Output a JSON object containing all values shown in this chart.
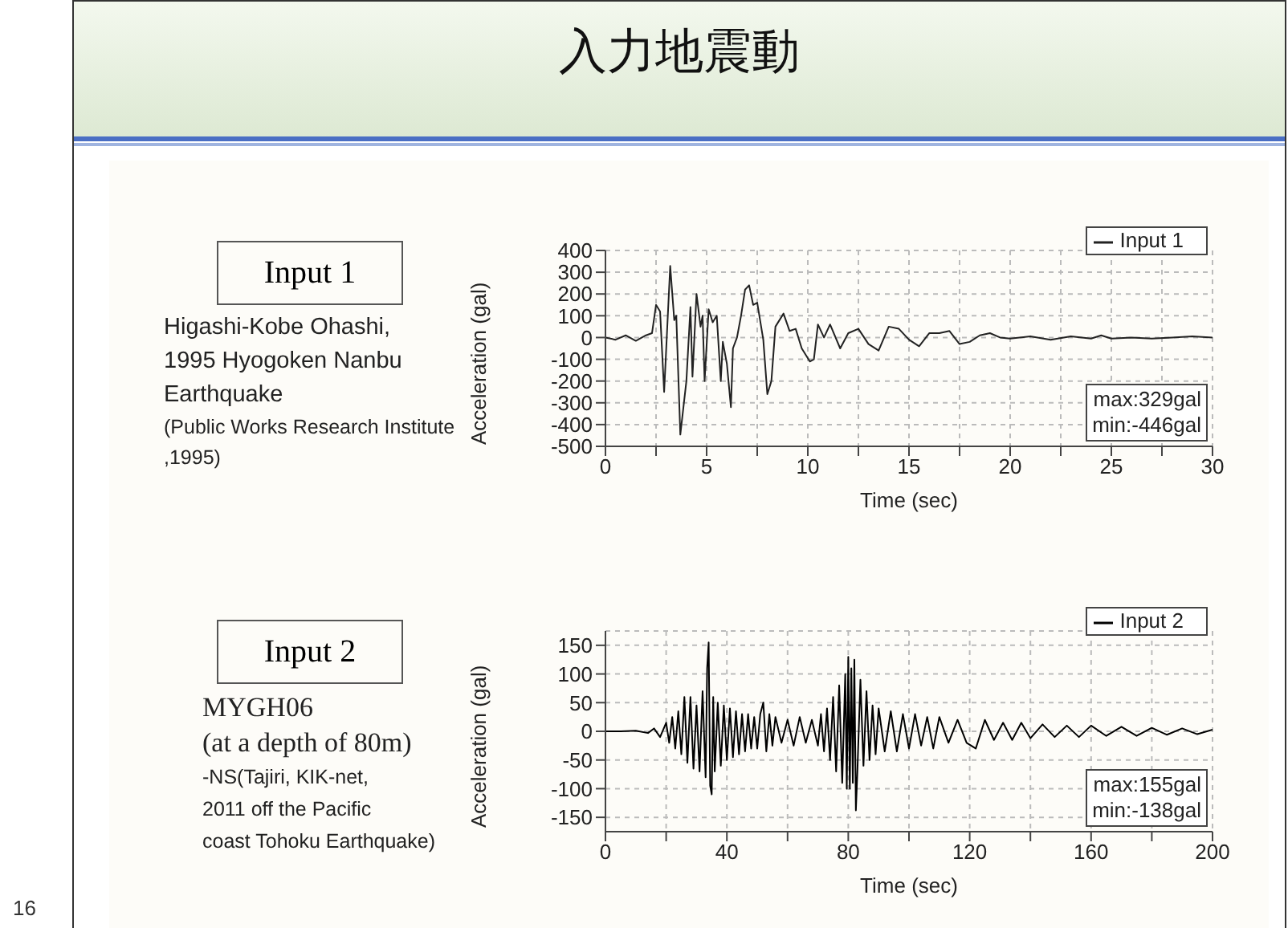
{
  "chart_data": [
    {
      "type": "line",
      "title": "入力地震動",
      "xlabel": "Time (sec)",
      "ylabel": "Acceleration (gal)",
      "x": [
        0,
        0.5,
        1,
        1.5,
        2,
        2.3,
        2.5,
        2.7,
        2.9,
        3.2,
        3.4,
        3.5,
        3.7,
        4,
        4.2,
        4.3,
        4.5,
        4.7,
        4.8,
        4.9,
        5.1,
        5.3,
        5.5,
        5.7,
        5.8,
        6,
        6.2,
        6.3,
        6.5,
        6.7,
        6.9,
        7.1,
        7.3,
        7.5,
        7.8,
        8,
        8.2,
        8.4,
        8.8,
        9.1,
        9.4,
        9.7,
        10.1,
        10.3,
        10.5,
        10.8,
        11.1,
        11.6,
        12,
        12.5,
        13,
        13.5,
        14,
        14.5,
        15,
        15.5,
        16,
        16.5,
        17,
        17.5,
        18,
        18.5,
        19,
        19.5,
        20,
        21,
        22,
        23,
        24,
        24.5,
        25,
        26,
        27,
        28,
        29,
        30
      ],
      "series": [
        {
          "name": "Input 1",
          "color": "#222222",
          "values": [
            0,
            -10,
            10,
            -15,
            10,
            20,
            150,
            120,
            -250,
            329,
            80,
            100,
            -446,
            -200,
            140,
            -180,
            200,
            50,
            100,
            -200,
            130,
            70,
            100,
            -200,
            -20,
            -120,
            -320,
            -50,
            0,
            100,
            220,
            240,
            150,
            160,
            -10,
            -260,
            -200,
            50,
            110,
            30,
            40,
            -50,
            -110,
            -100,
            60,
            0,
            60,
            -50,
            20,
            40,
            -30,
            -60,
            50,
            40,
            -10,
            -40,
            20,
            20,
            30,
            -30,
            -20,
            10,
            20,
            0,
            -5,
            5,
            -10,
            5,
            -5,
            10,
            -5,
            0,
            -5,
            0,
            5,
            0
          ]
        }
      ],
      "xlim": [
        0,
        30
      ],
      "xticks": [
        0,
        {
          "value": 2.5,
          "label": null
        },
        5,
        {
          "value": 7.5,
          "label": null
        },
        10,
        {
          "value": 12.5,
          "label": null
        },
        15,
        {
          "value": 17.5,
          "label": null
        },
        20,
        {
          "value": 22.5,
          "label": null
        },
        25,
        {
          "value": 27.5,
          "label": null
        },
        30
      ],
      "ylim": [
        -500,
        400
      ],
      "yticks": [
        -500,
        -400,
        -300,
        -200,
        -100,
        0,
        100,
        200,
        300,
        400
      ],
      "grid": true,
      "legend": "top right",
      "marker": "none",
      "line_style": "solid",
      "annotations": [
        "Input 1",
        "Higashi-Kobe Ohashi,",
        "1995 Hyogoken Nanbu",
        "Earthquake",
        "(Public Works Research Institute",
        ",1995)",
        "max:329gal",
        "min:-446gal"
      ]
    },
    {
      "type": "line",
      "xlabel": "Time (sec)",
      "ylabel": "Acceleration (gal)",
      "x": [
        0,
        5,
        10,
        14,
        16,
        18,
        20,
        21,
        22,
        23,
        24,
        25,
        26,
        27,
        28,
        29,
        30,
        31,
        32,
        33,
        33.5,
        34,
        34.5,
        35,
        35.5,
        36,
        37,
        38,
        39,
        40,
        41,
        42,
        43,
        44,
        45,
        46,
        47,
        48,
        49,
        50,
        51,
        52,
        53,
        54,
        55,
        56,
        58,
        60,
        62,
        64,
        66,
        68,
        70,
        71,
        72,
        73,
        74,
        75,
        76,
        77,
        78,
        79,
        79.5,
        80,
        80.5,
        81,
        81.5,
        82,
        82.5,
        83,
        84,
        85,
        86,
        87,
        88,
        89,
        90,
        92,
        94,
        96,
        98,
        100,
        102,
        104,
        106,
        108,
        110,
        113,
        116,
        119,
        122,
        125,
        128,
        131,
        134,
        137,
        140,
        144,
        148,
        152,
        156,
        160,
        165,
        170,
        175,
        180,
        185,
        190,
        195,
        200
      ],
      "series": [
        {
          "name": "Input 2",
          "color": "#000000",
          "values": [
            0,
            0,
            1,
            -3,
            5,
            -10,
            15,
            -20,
            25,
            -30,
            35,
            -40,
            60,
            -55,
            60,
            -65,
            45,
            -70,
            70,
            -80,
            110,
            155,
            -95,
            -110,
            60,
            -70,
            50,
            -60,
            45,
            -50,
            40,
            -45,
            35,
            -40,
            30,
            -35,
            30,
            -30,
            25,
            -30,
            30,
            50,
            -35,
            30,
            -25,
            25,
            -20,
            20,
            -25,
            25,
            -20,
            20,
            -25,
            30,
            -35,
            40,
            -50,
            60,
            -70,
            80,
            -90,
            100,
            -100,
            130,
            -100,
            110,
            -90,
            125,
            -138,
            -70,
            90,
            -60,
            70,
            -50,
            45,
            -40,
            40,
            -35,
            35,
            -35,
            30,
            -30,
            30,
            -25,
            25,
            -30,
            25,
            -20,
            20,
            -20,
            -30,
            20,
            -15,
            15,
            -15,
            15,
            -12,
            12,
            -10,
            10,
            -10,
            10,
            -8,
            8,
            -8,
            6,
            -6,
            5,
            -5,
            3
          ]
        }
      ],
      "xlim": [
        0,
        200
      ],
      "xticks": [
        0,
        {
          "value": 20,
          "label": null
        },
        40,
        {
          "value": 60,
          "label": null
        },
        80,
        {
          "value": 100,
          "label": null
        },
        120,
        {
          "value": 140,
          "label": null
        },
        160,
        {
          "value": 180,
          "label": null
        },
        200
      ],
      "ylim": [
        -175,
        175
      ],
      "yticks": [
        -150,
        -100,
        -50,
        0,
        50,
        100,
        150
      ],
      "grid": true,
      "legend": "top right",
      "marker": "none",
      "line_style": "solid",
      "annotations": [
        "Input 2",
        "MYGH06",
        "(at a depth of 80m)",
        "-NS(Tajiri, KIK-net,",
        "2011 off the Pacific",
        "coast Tohoku Earthquake)",
        "max:155gal",
        "min:-138gal",
        "16"
      ]
    }
  ]
}
